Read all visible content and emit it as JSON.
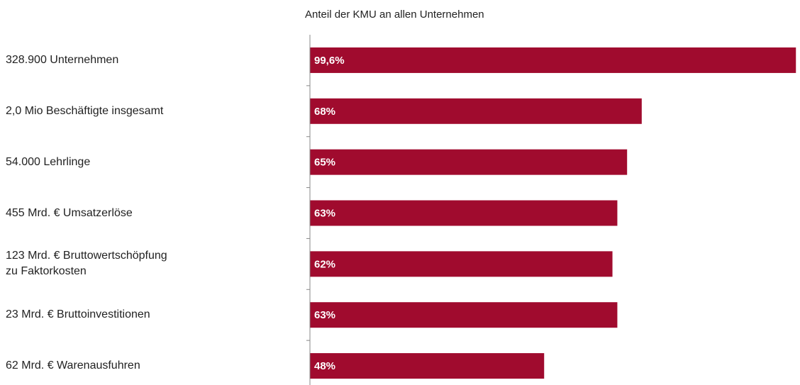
{
  "chart_data": {
    "type": "bar",
    "orientation": "horizontal",
    "title": "Anteil der KMU an allen Unternehmen",
    "categories": [
      "328.900 Unternehmen",
      "2,0 Mio Beschäftigte insgesamt",
      "54.000 Lehrlinge",
      "455 Mrd. € Umsatzerlöse",
      "123 Mrd. € Bruttowertschöpfung\nzu Faktorkosten",
      "23 Mrd. € Bruttoinvestitionen",
      "62 Mrd. € Warenausfuhren"
    ],
    "values": [
      99.6,
      68,
      65,
      63,
      62,
      63,
      48
    ],
    "value_labels": [
      "99,6%",
      "68%",
      "65%",
      "63%",
      "62%",
      "63%",
      "48%"
    ],
    "color": "#a00b2e",
    "xlim": [
      0,
      100
    ]
  }
}
